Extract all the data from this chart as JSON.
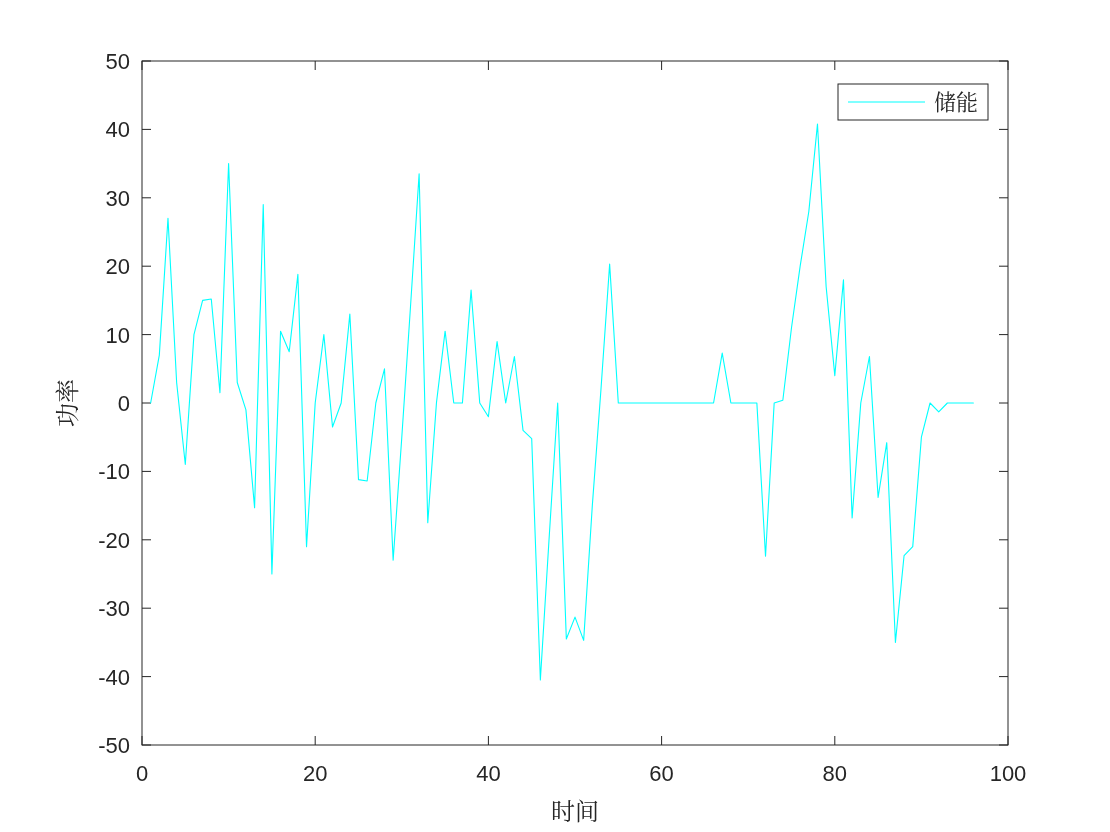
{
  "chart_data": {
    "type": "line",
    "xlabel": "时间",
    "ylabel": "功率",
    "legend": "top right",
    "xlim": [
      0,
      100
    ],
    "ylim": [
      -50,
      50
    ],
    "xticks": [
      0,
      20,
      40,
      60,
      80,
      100
    ],
    "yticks": [
      -50,
      -40,
      -30,
      -20,
      -10,
      0,
      10,
      20,
      30,
      40,
      50
    ],
    "x": [
      1,
      2,
      3,
      4,
      5,
      6,
      7,
      8,
      9,
      10,
      11,
      12,
      13,
      14,
      15,
      16,
      17,
      18,
      19,
      20,
      21,
      22,
      23,
      24,
      25,
      26,
      27,
      28,
      29,
      30,
      31,
      32,
      33,
      34,
      35,
      36,
      37,
      38,
      39,
      40,
      41,
      42,
      43,
      44,
      45,
      46,
      47,
      48,
      49,
      50,
      51,
      52,
      53,
      54,
      55,
      56,
      57,
      58,
      59,
      60,
      61,
      62,
      63,
      64,
      65,
      66,
      67,
      68,
      69,
      70,
      71,
      72,
      73,
      74,
      75,
      76,
      77,
      78,
      79,
      80,
      81,
      82,
      83,
      84,
      85,
      86,
      87,
      88,
      89,
      90,
      91,
      92,
      93,
      94,
      95,
      96
    ],
    "series": [
      {
        "name": "储能",
        "color": "#00ffff",
        "values": [
          0,
          7,
          27,
          3,
          -9,
          10,
          15,
          15.2,
          1.5,
          35,
          3,
          -1,
          -15.3,
          29,
          -25,
          10.5,
          7.5,
          18.8,
          -21,
          0,
          10,
          -3.5,
          0,
          13,
          -11.2,
          -11.4,
          0,
          5,
          -23,
          -5,
          14,
          33.5,
          -17.5,
          0,
          10.5,
          0,
          0,
          16.5,
          0,
          -2,
          9,
          0,
          6.8,
          -4,
          -5.2,
          -40.5,
          -20,
          0,
          -34.5,
          -31.3,
          -34.7,
          -15,
          2,
          20.3,
          0,
          0,
          0,
          0,
          0,
          0,
          0,
          0,
          0,
          0,
          0,
          0,
          7.3,
          0,
          0,
          0,
          0,
          -22.4,
          0,
          0.4,
          11,
          20,
          28,
          40.8,
          17,
          4,
          18,
          -16.8,
          0,
          6.8,
          -13.8,
          -5.8,
          -35,
          -22.3,
          -21,
          -5,
          0,
          -1.3,
          0,
          0,
          0,
          0
        ]
      }
    ]
  }
}
